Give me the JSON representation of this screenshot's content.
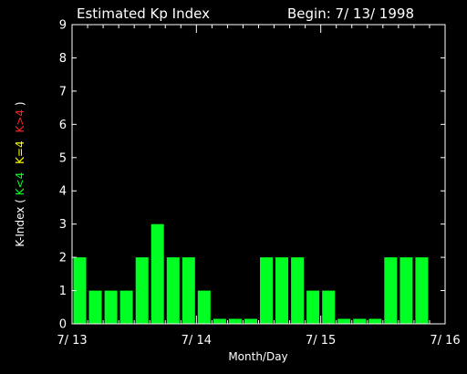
{
  "header": {
    "title": "Estimated Kp Index",
    "begin_label": "Begin: 7/ 13/ 1998"
  },
  "colors": {
    "background": "#000000",
    "axis": "#ffffff",
    "bar_quiet": "#00ff22",
    "level_equal": "#ffff00",
    "level_high": "#ff2222"
  },
  "chart_data": {
    "type": "bar",
    "title": "Estimated Kp Index",
    "xlabel": "Month/Day",
    "ylabel": {
      "prefix": "K-Index ( ",
      "low": "K<4",
      "equal": "K=4",
      "high": "K>4",
      "suffix": " )"
    },
    "ylim": [
      0,
      9
    ],
    "yticks": [
      "0",
      "1",
      "2",
      "3",
      "4",
      "5",
      "6",
      "7",
      "8",
      "9"
    ],
    "xlim": [
      0,
      72
    ],
    "xticks": [
      {
        "hour": 0,
        "label": "7/ 13"
      },
      {
        "hour": 24,
        "label": "7/ 14"
      },
      {
        "hour": 48,
        "label": "7/ 15"
      },
      {
        "hour": 72,
        "label": "7/ 16"
      }
    ],
    "interval_hours": 3,
    "values": [
      2,
      1,
      1,
      1,
      2,
      3,
      2,
      2,
      1,
      0.15,
      0.15,
      0.15,
      2,
      2,
      2,
      1,
      1,
      0.15,
      0.15,
      0.15,
      2,
      2,
      2
    ]
  }
}
